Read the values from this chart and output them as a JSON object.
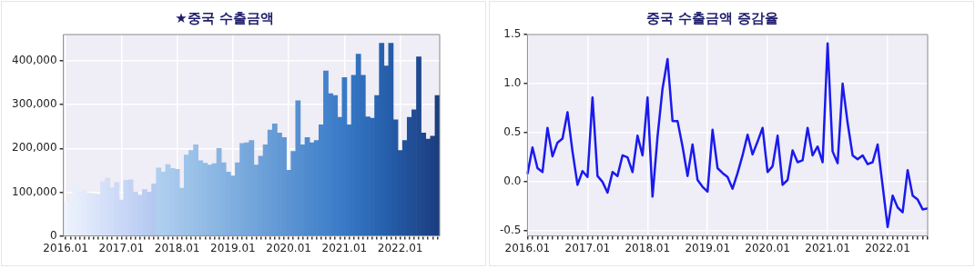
{
  "chart_data": [
    {
      "type": "bar",
      "title": "★중국 수출금액",
      "categories": [
        "2016.01",
        null,
        null,
        null,
        null,
        null,
        null,
        null,
        null,
        null,
        null,
        null,
        "2017.01",
        null,
        null,
        null,
        null,
        null,
        null,
        null,
        null,
        null,
        null,
        null,
        "2018.01",
        null,
        null,
        null,
        null,
        null,
        null,
        null,
        null,
        null,
        null,
        null,
        "2019.01",
        null,
        null,
        null,
        null,
        null,
        null,
        null,
        null,
        null,
        null,
        null,
        "2020.01",
        null,
        null,
        null,
        null,
        null,
        null,
        null,
        null,
        null,
        null,
        null,
        "2021.01",
        null,
        null,
        null,
        null,
        null,
        null,
        null,
        null,
        null,
        null,
        null,
        "2022.01",
        null,
        null,
        null,
        null,
        null,
        null,
        null,
        null
      ],
      "values": [
        77000,
        68000,
        120000,
        100000,
        105000,
        98000,
        96000,
        94000,
        124000,
        132000,
        110000,
        122000,
        82000,
        127000,
        128000,
        100000,
        93000,
        106000,
        100000,
        119000,
        155000,
        146000,
        163000,
        154000,
        152000,
        109000,
        185000,
        195000,
        208000,
        172000,
        166000,
        162000,
        165000,
        200000,
        167000,
        146000,
        137000,
        167000,
        211000,
        213000,
        218000,
        162000,
        182000,
        208000,
        242000,
        256000,
        235000,
        225000,
        150000,
        193000,
        309000,
        208000,
        225000,
        213000,
        218000,
        254000,
        377000,
        325000,
        321000,
        271000,
        362000,
        254000,
        367000,
        415000,
        367000,
        272000,
        269000,
        321000,
        440000,
        388000,
        440000,
        265000,
        195000,
        218000,
        271000,
        288000,
        409000,
        235000,
        221000,
        228000,
        321000
      ],
      "colors": [
        "#eef3fd",
        "#ebf1fc",
        "#e8effc",
        "#e5ecfb",
        "#e2eafb",
        "#dfe8fa",
        "#dce6fa",
        "#d9e3f9",
        "#d6e1f9",
        "#d3dff8",
        "#d0ddf8",
        "#cddaf7",
        "#cad8f7",
        "#c7d6f6",
        "#c4d3f5",
        "#c0d1f4",
        "#bdcff3",
        "#bacdf2",
        "#b7caf1",
        "#b3c8f0",
        "#b0cfef",
        "#adcdee",
        "#aacbed",
        "#a7c9ec",
        "#a4c7eb",
        "#a1c5ea",
        "#9ec3e9",
        "#9bc1e8",
        "#98bfe7",
        "#95bde6",
        "#92bbe5",
        "#8fb9e4",
        "#8cb7e3",
        "#89b5e2",
        "#86b3e1",
        "#83b0e0",
        "#80aedf",
        "#7dacde",
        "#7aaadd",
        "#77a8dc",
        "#74a6db",
        "#71a4da",
        "#6ea1d9",
        "#6b9fd8",
        "#689dd7",
        "#659bd6",
        "#6299d5",
        "#5f97d4",
        "#5c94d3",
        "#5992d2",
        "#5690d1",
        "#538ed0",
        "#508bcf",
        "#4d89ce",
        "#4a87cd",
        "#4785cc",
        "#4482cb",
        "#4180ca",
        "#3e7ec9",
        "#3b7cc8",
        "#387ac6",
        "#3677c4",
        "#3474c1",
        "#3271be",
        "#306ebb",
        "#2e6bb8",
        "#2c68b5",
        "#2a65b2",
        "#2862af",
        "#265fac",
        "#255ca8",
        "#2459a4",
        "#2356a0",
        "#22539c",
        "#215098",
        "#204d94",
        "#1f4a90",
        "#1e478c",
        "#1d4488",
        "#1c4184",
        "#1b3e80"
      ],
      "ylim": [
        0,
        460000
      ],
      "yticks": [
        {
          "value": 0,
          "label": "0"
        },
        {
          "value": 100000,
          "label": "100,000"
        },
        {
          "value": 200000,
          "label": "200,000"
        },
        {
          "value": 300000,
          "label": "300,000"
        },
        {
          "value": 400000,
          "label": "400,000"
        }
      ],
      "grid": true
    },
    {
      "type": "line",
      "title": "중국 수출금액 증감율",
      "categories": [
        "2016.01",
        null,
        null,
        null,
        null,
        null,
        null,
        null,
        null,
        null,
        null,
        null,
        "2017.01",
        null,
        null,
        null,
        null,
        null,
        null,
        null,
        null,
        null,
        null,
        null,
        "2018.01",
        null,
        null,
        null,
        null,
        null,
        null,
        null,
        null,
        null,
        null,
        null,
        "2019.01",
        null,
        null,
        null,
        null,
        null,
        null,
        null,
        null,
        null,
        null,
        null,
        "2020.01",
        null,
        null,
        null,
        null,
        null,
        null,
        null,
        null,
        null,
        null,
        null,
        "2021.01",
        null,
        null,
        null,
        null,
        null,
        null,
        null,
        null,
        null,
        null,
        null,
        "2022.01",
        null,
        null,
        null,
        null,
        null,
        null,
        null,
        null
      ],
      "series": [
        {
          "color": "#1a1aee",
          "values": [
            0.08,
            0.35,
            0.14,
            0.1,
            0.55,
            0.26,
            0.4,
            0.44,
            0.71,
            0.31,
            -0.03,
            0.11,
            0.05,
            0.86,
            0.06,
            0.0,
            -0.11,
            0.1,
            0.06,
            0.27,
            0.25,
            0.1,
            0.47,
            0.27,
            0.86,
            -0.15,
            0.46,
            0.95,
            1.25,
            0.62,
            0.62,
            0.36,
            0.06,
            0.38,
            0.02,
            -0.05,
            -0.1,
            0.53,
            0.14,
            0.09,
            0.05,
            -0.07,
            0.09,
            0.27,
            0.48,
            0.28,
            0.41,
            0.55,
            0.1,
            0.16,
            0.47,
            -0.03,
            0.02,
            0.32,
            0.2,
            0.22,
            0.55,
            0.27,
            0.36,
            0.2,
            1.41,
            0.31,
            0.19,
            1.0,
            0.6,
            0.27,
            0.23,
            0.27,
            0.18,
            0.2,
            0.38,
            -0.04,
            -0.46,
            -0.14,
            -0.26,
            -0.31,
            0.12,
            -0.14,
            -0.18,
            -0.28,
            -0.27
          ]
        }
      ],
      "ylim": [
        -0.55,
        1.5
      ],
      "yticks": [
        {
          "value": -0.5,
          "label": "-0.5"
        },
        {
          "value": 0,
          "label": "0.0"
        },
        {
          "value": 0.5,
          "label": "0.5"
        },
        {
          "value": 1,
          "label": "1.0"
        },
        {
          "value": 1.5,
          "label": "1.5"
        }
      ],
      "grid": true
    }
  ]
}
